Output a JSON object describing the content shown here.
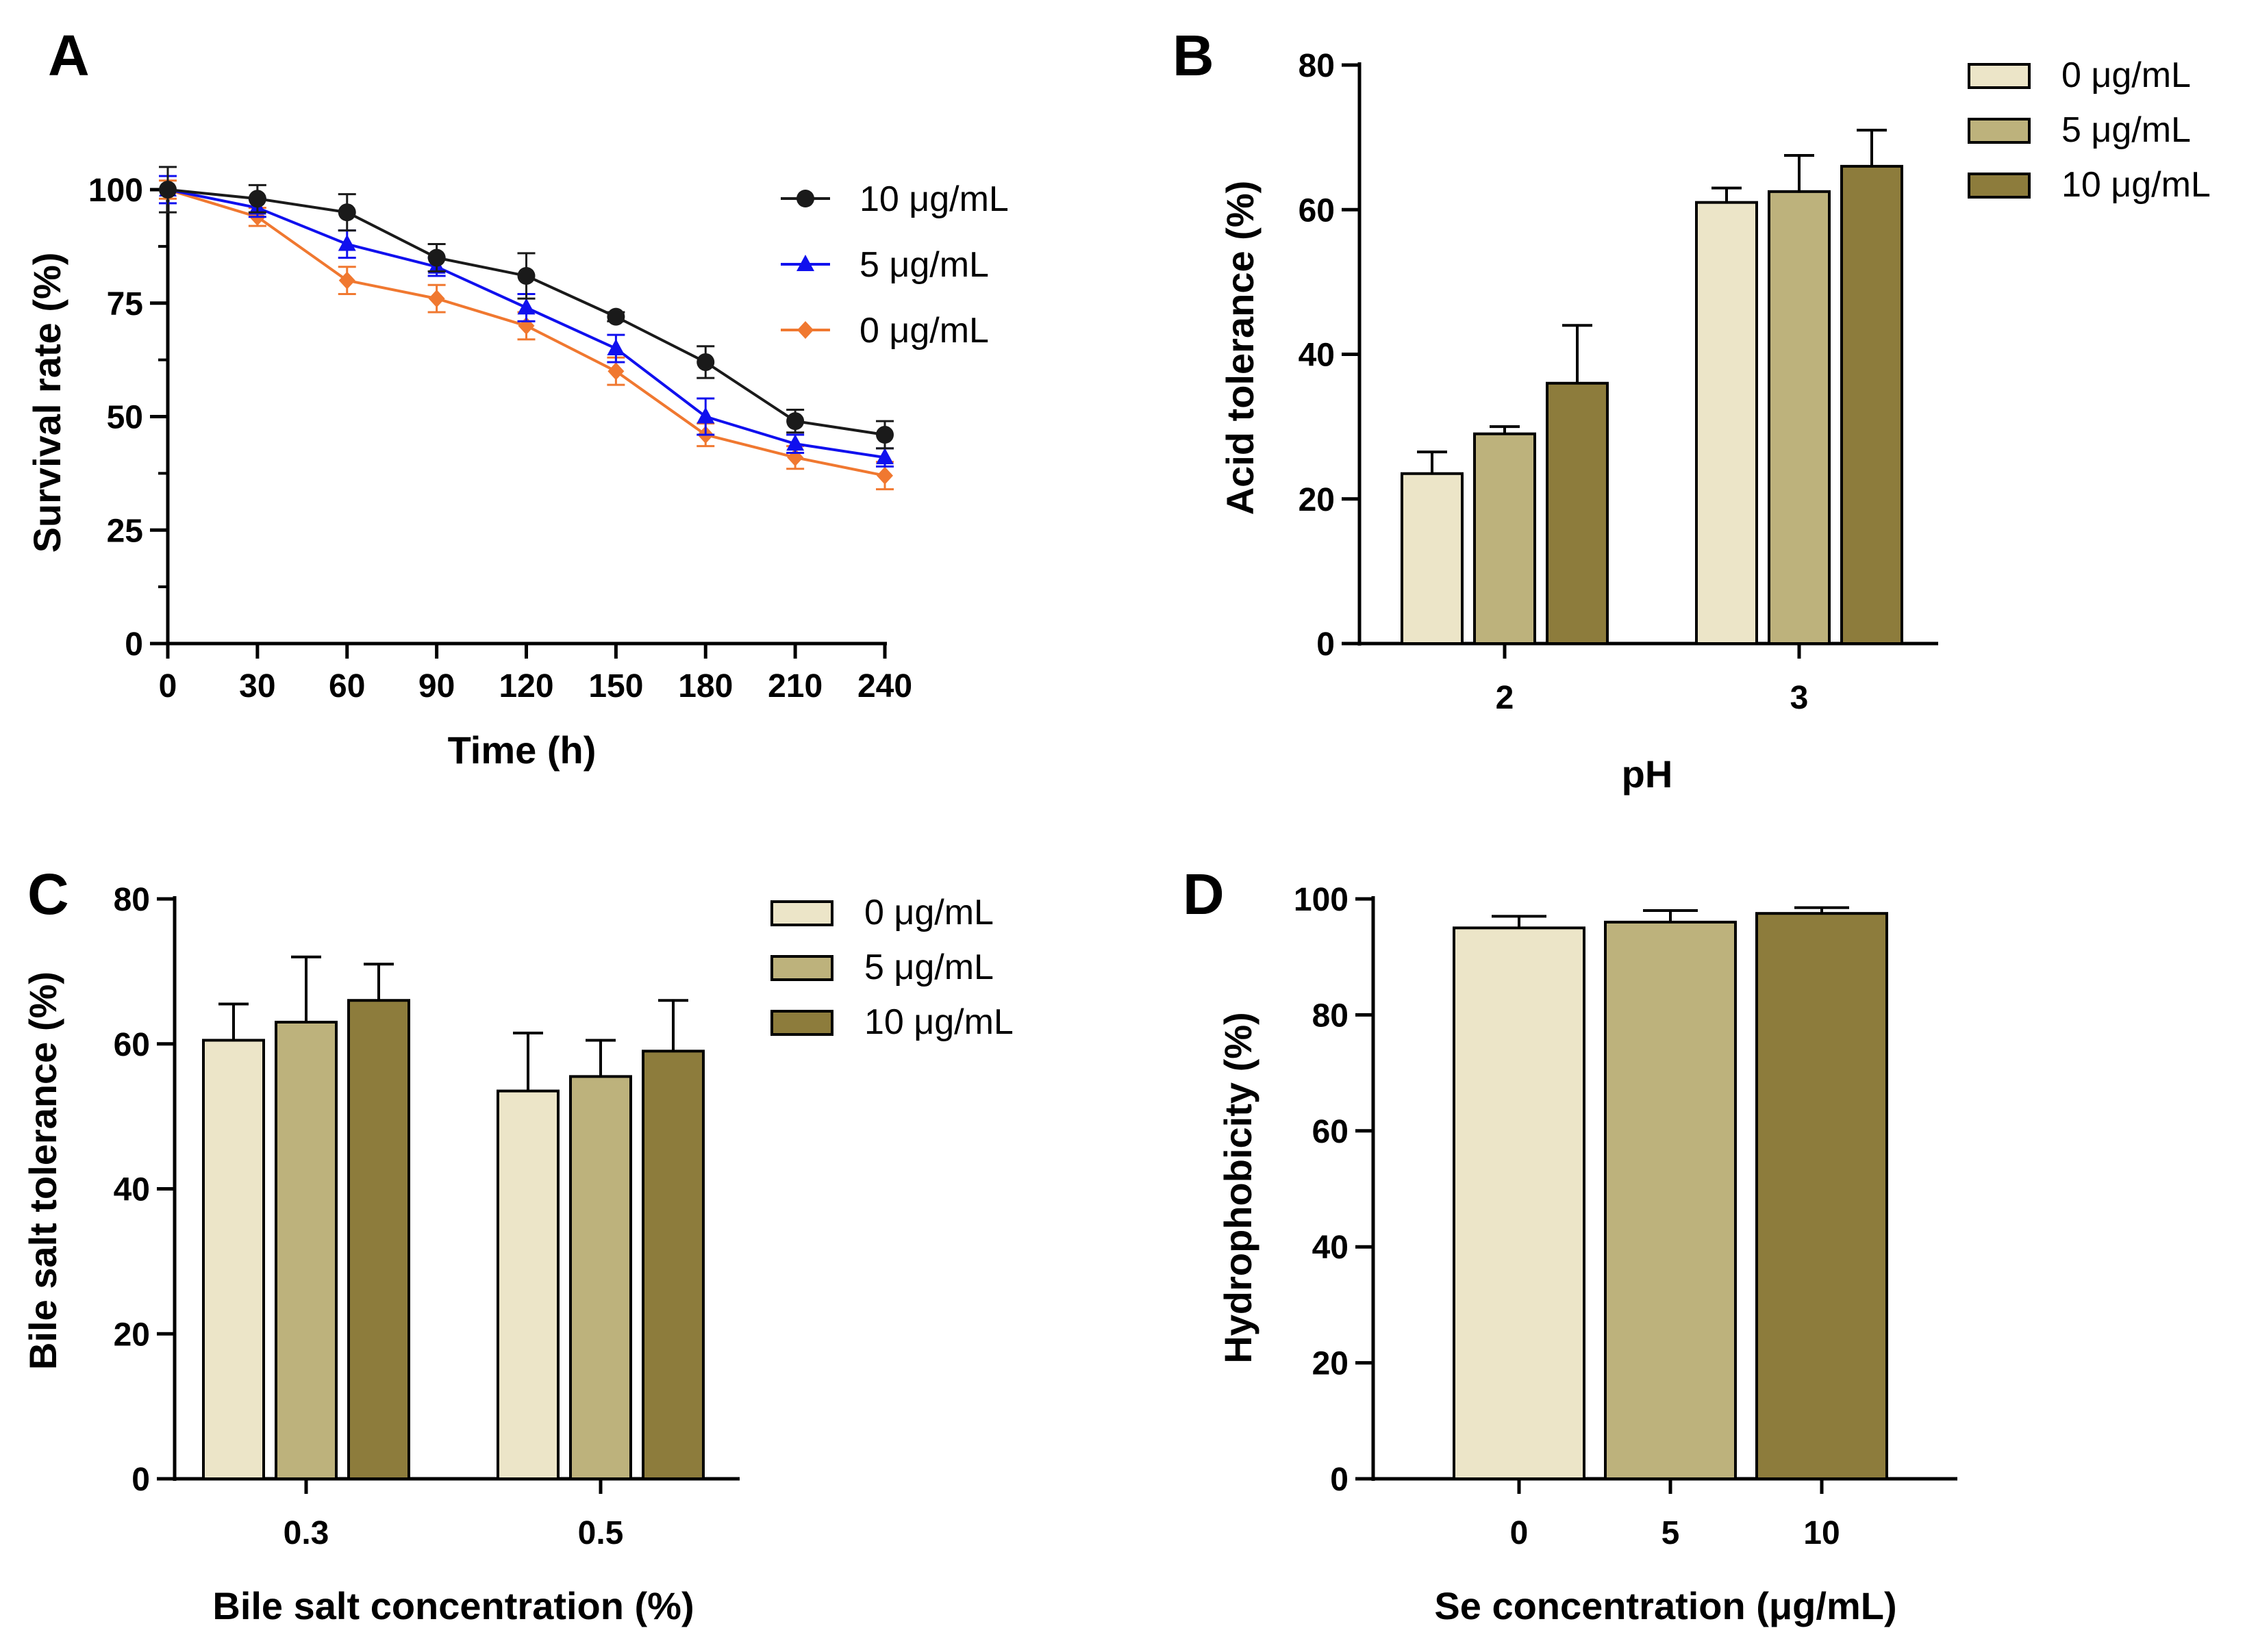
{
  "figure": {
    "colors": {
      "axis": "#000000",
      "s10_line": "#1a1a1a",
      "s5_line": "#1010ee",
      "s0_line": "#f07830",
      "bar0": "#ece5c8",
      "bar5": "#bdb27c",
      "bar10": "#8d7c3c"
    }
  },
  "chart_data": [
    {
      "panel": "A",
      "type": "line",
      "xlabel": "Time (h)",
      "ylabel": "Survival rate (%)",
      "xlim": [
        0,
        240
      ],
      "ylim": [
        0,
        100
      ],
      "x": [
        0,
        30,
        60,
        90,
        120,
        150,
        180,
        210,
        240
      ],
      "xticks": [
        "0",
        "30",
        "60",
        "90",
        "120",
        "150",
        "180",
        "210",
        "240"
      ],
      "yticks": [
        "0",
        "25",
        "50",
        "75",
        "100"
      ],
      "legend_position": "top-right",
      "series": [
        {
          "name": "10 μg/mL",
          "marker": "circle",
          "color": "#1a1a1a",
          "values": [
            100,
            98,
            95,
            85,
            81,
            72,
            62,
            49,
            46
          ],
          "errors": [
            5,
            3,
            4,
            3,
            5,
            1,
            3.5,
            2.5,
            3
          ]
        },
        {
          "name": "5 μg/mL",
          "marker": "triangle",
          "color": "#1010ee",
          "values": [
            100,
            96,
            88,
            83,
            74,
            65,
            50,
            44,
            41
          ],
          "errors": [
            3,
            2,
            3,
            2,
            3,
            3,
            4,
            2,
            2
          ]
        },
        {
          "name": "0 μg/mL",
          "marker": "diamond",
          "color": "#f07830",
          "values": [
            100,
            94,
            80,
            76,
            70,
            60,
            46,
            41,
            37
          ],
          "errors": [
            2,
            2,
            3,
            3,
            3,
            3,
            2.5,
            2.5,
            3
          ]
        }
      ]
    },
    {
      "panel": "B",
      "type": "bar",
      "xlabel": "pH",
      "ylabel": "Acid tolerance (%)",
      "ylim": [
        0,
        80
      ],
      "categories": [
        "2",
        "3"
      ],
      "yticks": [
        "0",
        "20",
        "40",
        "60",
        "80"
      ],
      "legend_position": "top-right",
      "series": [
        {
          "name": "0 μg/mL",
          "color": "#ece5c8",
          "values": [
            23.5,
            61
          ],
          "errors": [
            3,
            2
          ]
        },
        {
          "name": "5 μg/mL",
          "color": "#bdb27c",
          "values": [
            29,
            62.5
          ],
          "errors": [
            1,
            5
          ]
        },
        {
          "name": "10 μg/mL",
          "color": "#8d7c3c",
          "values": [
            36,
            66
          ],
          "errors": [
            8,
            5
          ]
        }
      ]
    },
    {
      "panel": "C",
      "type": "bar",
      "xlabel": "Bile salt concentration (%)",
      "ylabel": "Bile salt tolerance (%)",
      "ylim": [
        0,
        80
      ],
      "categories": [
        "0.3",
        "0.5"
      ],
      "yticks": [
        "0",
        "20",
        "40",
        "60",
        "80"
      ],
      "legend_position": "top-right",
      "series": [
        {
          "name": "0 μg/mL",
          "color": "#ece5c8",
          "values": [
            60.5,
            53.5
          ],
          "errors": [
            5,
            8
          ]
        },
        {
          "name": "5 μg/mL",
          "color": "#bdb27c",
          "values": [
            63,
            55.5
          ],
          "errors": [
            9,
            5
          ]
        },
        {
          "name": "10 μg/mL",
          "color": "#8d7c3c",
          "values": [
            66,
            59
          ],
          "errors": [
            5,
            7
          ]
        }
      ]
    },
    {
      "panel": "D",
      "type": "bar",
      "xlabel": "Se concentration (μg/mL)",
      "ylabel": "Hydrophobicity (%)",
      "ylim": [
        0,
        100
      ],
      "categories": [
        "0",
        "5",
        "10"
      ],
      "yticks": [
        "0",
        "20",
        "40",
        "60",
        "80",
        "100"
      ],
      "colors": [
        "#ece5c8",
        "#bdb27c",
        "#8d7c3c"
      ],
      "values": [
        95,
        96,
        97.5
      ],
      "errors": [
        2,
        2,
        1
      ]
    }
  ]
}
